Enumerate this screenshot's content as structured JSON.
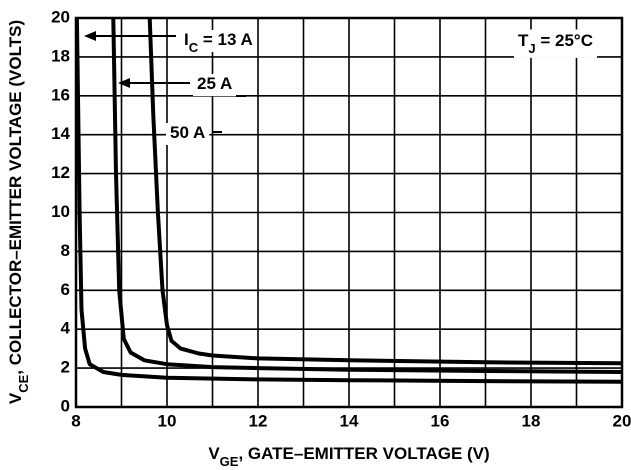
{
  "chart_data": {
    "type": "line",
    "xlabel_parts": [
      "V",
      "GE",
      ", GATE–EMITTER VOLTAGE (V)"
    ],
    "ylabel_parts": [
      "V",
      "CE",
      ", COLLECTOR–EMITTER VOLTAGE (VOLTS)"
    ],
    "annotation_parts": [
      "T",
      "J",
      " = 25°C"
    ],
    "xlim": [
      8,
      20
    ],
    "xticks": [
      8,
      10,
      12,
      14,
      16,
      18,
      20
    ],
    "xminor_ticks": [
      9,
      11,
      13,
      15,
      17,
      19
    ],
    "ylim": [
      0,
      20
    ],
    "yticks": [
      0,
      2,
      4,
      6,
      8,
      10,
      12,
      14,
      16,
      18,
      20
    ],
    "grid": true,
    "series": [
      {
        "label_parts": [
          "I",
          "C",
          " = 13 A"
        ],
        "color": "#000000",
        "x": [
          8.02,
          8.08,
          8.12,
          8.2,
          8.3,
          8.6,
          9,
          10,
          12,
          14,
          17,
          20
        ],
        "values": [
          20,
          10,
          5,
          3,
          2.2,
          1.8,
          1.65,
          1.5,
          1.42,
          1.38,
          1.33,
          1.3
        ]
      },
      {
        "label_parts": [
          "25 A"
        ],
        "color": "#000000",
        "x": [
          8.82,
          8.88,
          8.95,
          9.05,
          9.2,
          9.5,
          10,
          11,
          12,
          14,
          17,
          20
        ],
        "values": [
          20,
          12,
          6,
          3.5,
          2.8,
          2.4,
          2.2,
          2.05,
          2.0,
          1.92,
          1.85,
          1.8
        ]
      },
      {
        "label_parts": [
          "50 A"
        ],
        "color": "#000000",
        "x": [
          9.62,
          9.7,
          9.8,
          9.9,
          10,
          10.1,
          10.3,
          10.7,
          11,
          12,
          14,
          17,
          20
        ],
        "values": [
          20,
          15,
          10,
          6,
          4.2,
          3.4,
          3.0,
          2.75,
          2.65,
          2.5,
          2.4,
          2.3,
          2.25
        ]
      }
    ]
  }
}
